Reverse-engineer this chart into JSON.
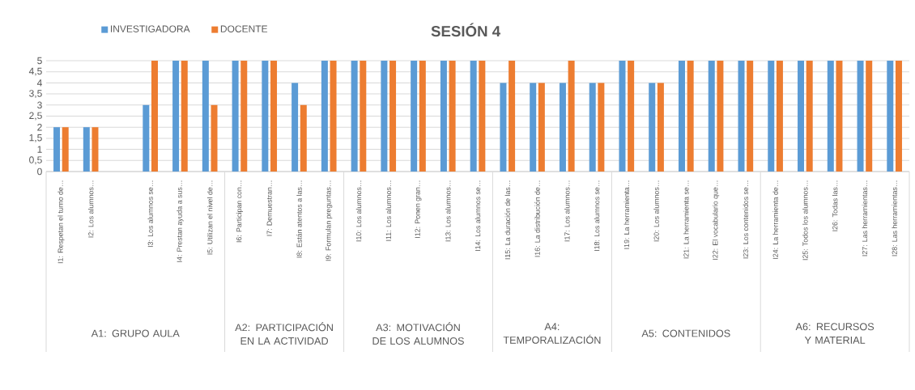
{
  "chart_data": {
    "type": "bar",
    "title": "SESIÓN 4",
    "categories": [
      "I1: Respetan el turno de…",
      "I2:  Los alumnos…",
      null,
      "I3: Los alumnos se…",
      "I4: Prestan ayuda a sus…",
      "I5: Utilizan el nivel de…",
      "I6: Participan con…",
      "I7: Demuestran…",
      "I8: Están atentos a las…",
      "I9: Formulan preguntas…",
      "I10: Los alumnos…",
      "I11: Los alumnos…",
      "I12: Ponen gran…",
      "I13: Los alumnos…",
      "I14: Los alumnos se…",
      "I15: La duración de las…",
      "I16: La distribución de…",
      "I17: Los alumnos…",
      "I18: Los alumnos se…",
      "I19: La herramienta…",
      "I20: Los alumnos…",
      "I21: La herramienta se…",
      "I22: El vocabulario que…",
      "I23: Los contenidos se…",
      "I24: La herramienta de…",
      "I25: Todos los alumnos…",
      "I26: Todas las…",
      "I27: Las herramientas…",
      "I28: Las herramientas…"
    ],
    "series": [
      {
        "name": "INVESTIGADORA",
        "color": "#5b9bd5",
        "values": [
          2,
          2,
          null,
          3,
          5,
          5,
          5,
          5,
          4,
          5,
          5,
          5,
          5,
          5,
          5,
          4,
          4,
          4,
          4,
          5,
          4,
          5,
          5,
          5,
          5,
          5,
          5,
          5,
          5
        ]
      },
      {
        "name": "DOCENTE",
        "color": "#ed7d31",
        "values": [
          2,
          2,
          null,
          5,
          5,
          3,
          5,
          5,
          3,
          5,
          5,
          5,
          5,
          5,
          5,
          5,
          4,
          5,
          4,
          5,
          4,
          5,
          5,
          5,
          5,
          5,
          5,
          5,
          5
        ]
      }
    ],
    "ylim": [
      0,
      5
    ],
    "yticks": [
      0,
      {
        "value": 0.5,
        "label": "0,5"
      },
      1,
      {
        "value": 1.5,
        "label": "1,5"
      },
      2,
      {
        "value": 2.5,
        "label": "2,5"
      },
      3,
      {
        "value": 3.5,
        "label": "3,5"
      },
      4,
      {
        "value": 4.5,
        "label": "4,5"
      },
      5
    ],
    "grid": "y",
    "legend": "top left",
    "annotations": [
      "A1: GRUPO AULA",
      "A2: PARTICIPACIÓN EN LA ACTIVIDAD",
      "A3: MOTIVACIÓN DE LOS ALUMNOS",
      "A4: TEMPORALIZACIÓN",
      "A5: CONTENIDOS",
      "A6:  RECURSOS Y MATERIAL"
    ]
  }
}
